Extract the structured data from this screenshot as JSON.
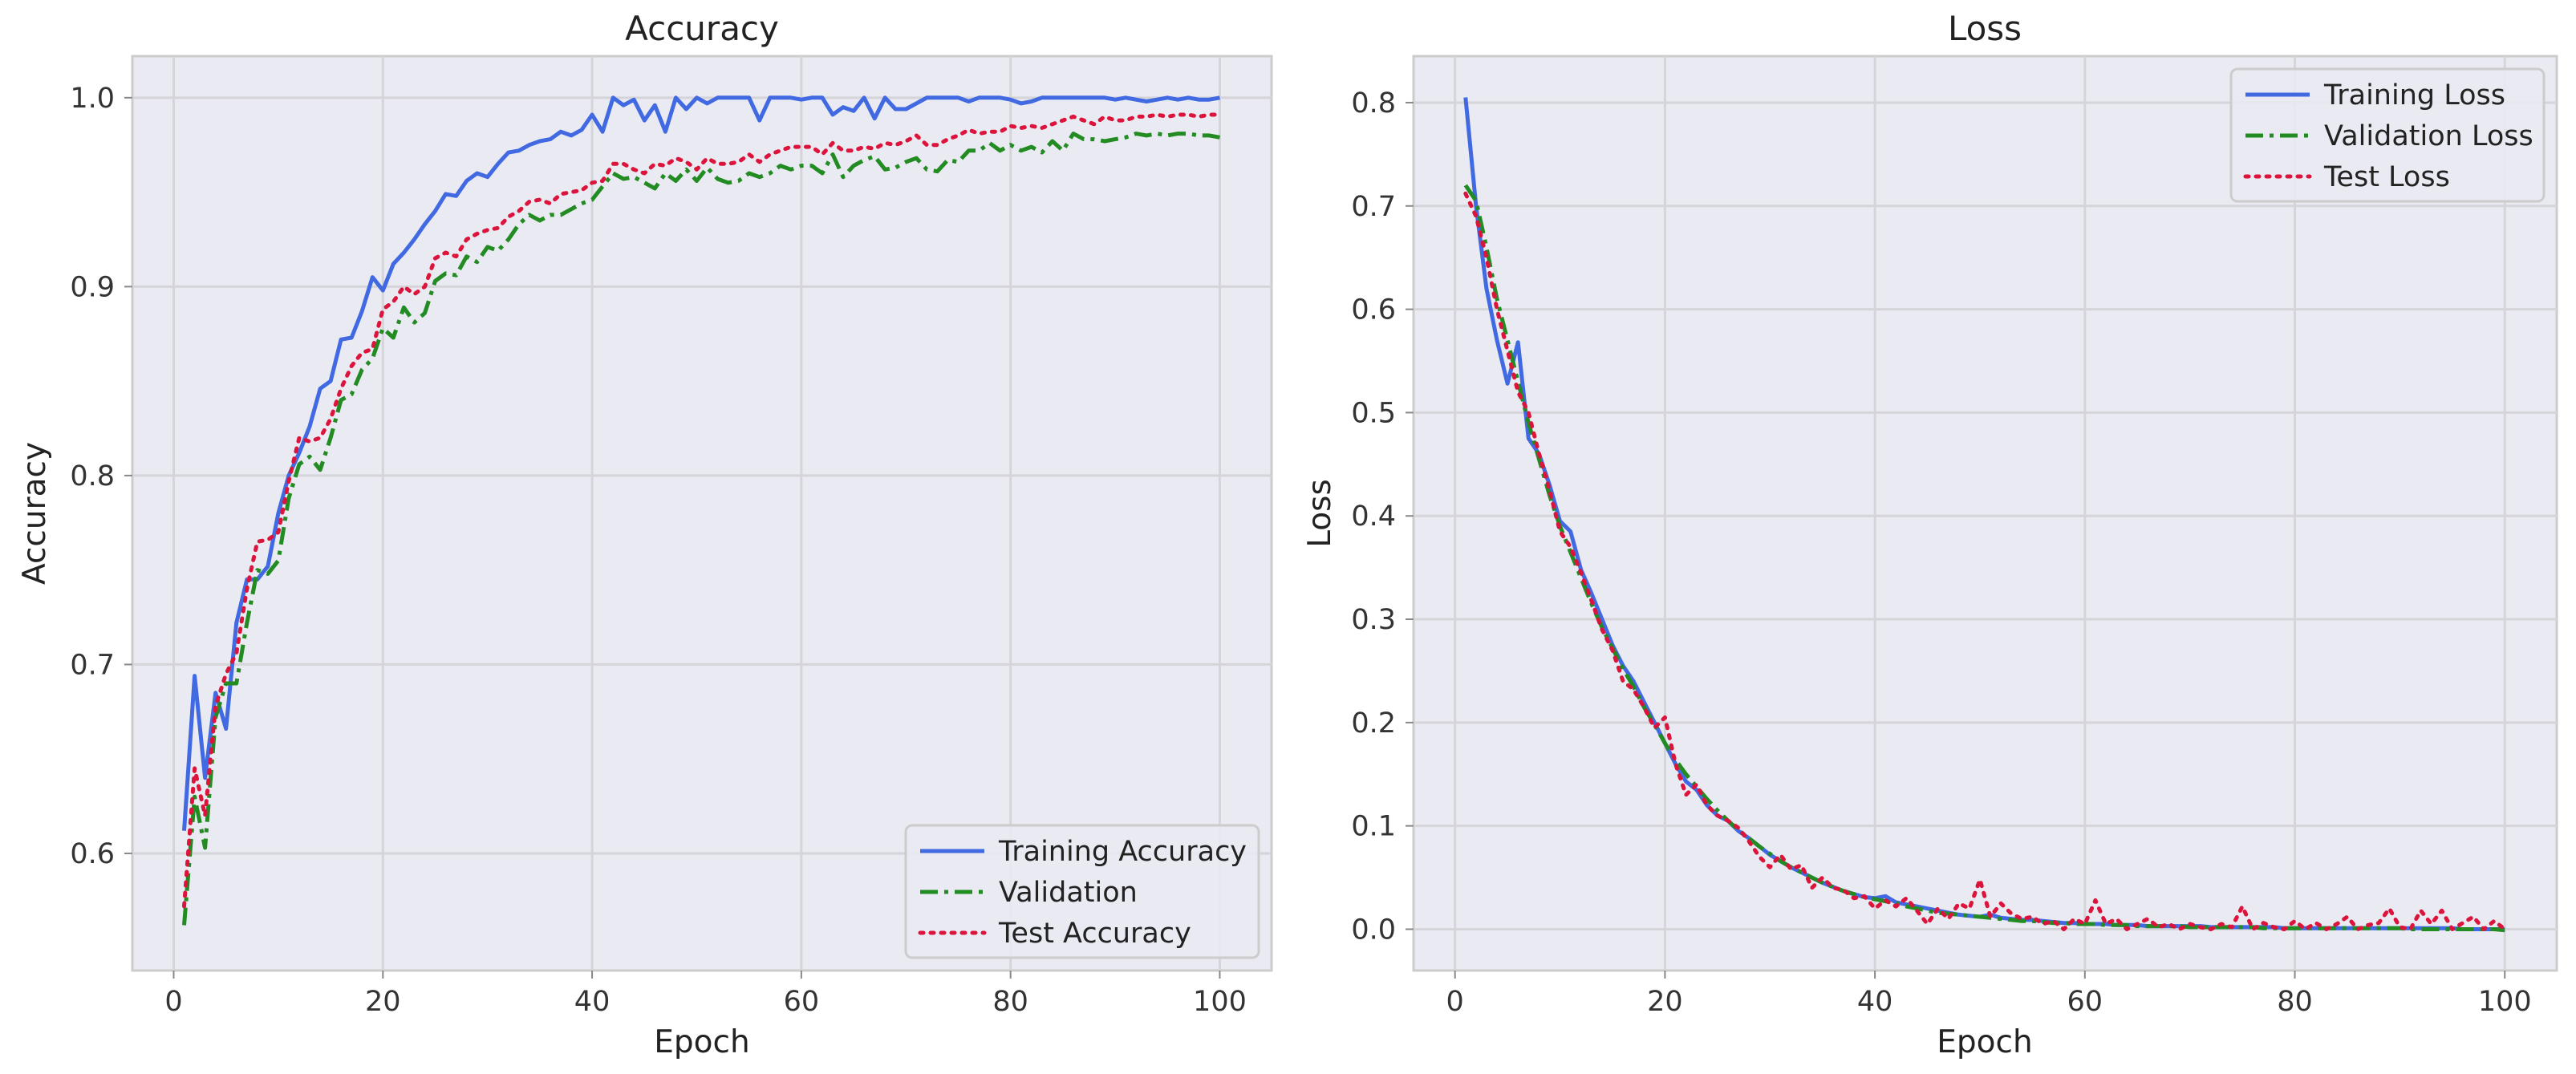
{
  "chart_data": [
    {
      "type": "line",
      "title": "Accuracy",
      "xlabel": "Epoch",
      "ylabel": "Accuracy",
      "xlim": [
        -3.95,
        104.95
      ],
      "ylim": [
        0.538,
        1.022
      ],
      "xticks": [
        0,
        20,
        40,
        60,
        80,
        100
      ],
      "yticks": [
        0.6,
        0.7,
        0.8,
        0.9,
        1.0
      ],
      "grid": true,
      "legend_position": "lower-right",
      "x": [
        1,
        2,
        3,
        4,
        5,
        6,
        7,
        8,
        9,
        10,
        11,
        12,
        13,
        14,
        15,
        16,
        17,
        18,
        19,
        20,
        21,
        22,
        23,
        24,
        25,
        26,
        27,
        28,
        29,
        30,
        31,
        32,
        33,
        34,
        35,
        36,
        37,
        38,
        39,
        40,
        41,
        42,
        43,
        44,
        45,
        46,
        47,
        48,
        49,
        50,
        51,
        52,
        53,
        54,
        55,
        56,
        57,
        58,
        59,
        60,
        61,
        62,
        63,
        64,
        65,
        66,
        67,
        68,
        69,
        70,
        71,
        72,
        73,
        74,
        75,
        76,
        77,
        78,
        79,
        80,
        81,
        82,
        83,
        84,
        85,
        86,
        87,
        88,
        89,
        90,
        91,
        92,
        93,
        94,
        95,
        96,
        97,
        98,
        99,
        100
      ],
      "series": [
        {
          "name": "Training Accuracy",
          "color": "#4169e1",
          "dash": "solid",
          "values": [
            0.612,
            0.694,
            0.64,
            0.685,
            0.666,
            0.722,
            0.745,
            0.745,
            0.752,
            0.78,
            0.8,
            0.812,
            0.826,
            0.846,
            0.85,
            0.872,
            0.873,
            0.887,
            0.905,
            0.898,
            0.912,
            0.918,
            0.925,
            0.933,
            0.94,
            0.949,
            0.948,
            0.956,
            0.96,
            0.958,
            0.965,
            0.971,
            0.972,
            0.975,
            0.977,
            0.978,
            0.982,
            0.98,
            0.983,
            0.991,
            0.982,
            1.0,
            0.996,
            0.999,
            0.988,
            0.996,
            0.982,
            1.0,
            0.994,
            1.0,
            0.997,
            1.0,
            1.0,
            1.0,
            1.0,
            0.988,
            1.0,
            1.0,
            1.0,
            0.999,
            1.0,
            1.0,
            0.991,
            0.995,
            0.993,
            1.0,
            0.989,
            1.0,
            0.994,
            0.994,
            0.997,
            1.0,
            1.0,
            1.0,
            1.0,
            0.998,
            1.0,
            1.0,
            1.0,
            0.999,
            0.997,
            0.998,
            1.0,
            1.0,
            1.0,
            1.0,
            1.0,
            1.0,
            1.0,
            0.999,
            1.0,
            0.999,
            0.998,
            0.999,
            1.0,
            0.999,
            1.0,
            0.999,
            0.999,
            1.0
          ]
        },
        {
          "name": "Validation",
          "color": "#228b22",
          "dash": "dashdot",
          "values": [
            0.562,
            0.63,
            0.603,
            0.672,
            0.69,
            0.69,
            0.722,
            0.75,
            0.748,
            0.755,
            0.788,
            0.806,
            0.81,
            0.803,
            0.82,
            0.84,
            0.843,
            0.856,
            0.862,
            0.878,
            0.873,
            0.889,
            0.881,
            0.886,
            0.903,
            0.907,
            0.906,
            0.916,
            0.913,
            0.921,
            0.919,
            0.925,
            0.933,
            0.938,
            0.935,
            0.938,
            0.938,
            0.941,
            0.944,
            0.946,
            0.953,
            0.96,
            0.957,
            0.958,
            0.955,
            0.952,
            0.96,
            0.956,
            0.962,
            0.956,
            0.963,
            0.957,
            0.955,
            0.956,
            0.96,
            0.958,
            0.96,
            0.964,
            0.962,
            0.964,
            0.964,
            0.96,
            0.97,
            0.958,
            0.964,
            0.967,
            0.969,
            0.962,
            0.963,
            0.966,
            0.968,
            0.962,
            0.961,
            0.967,
            0.966,
            0.972,
            0.972,
            0.976,
            0.972,
            0.975,
            0.972,
            0.974,
            0.971,
            0.977,
            0.972,
            0.981,
            0.978,
            0.978,
            0.977,
            0.978,
            0.979,
            0.981,
            0.98,
            0.981,
            0.98,
            0.981,
            0.981,
            0.98,
            0.98,
            0.979
          ]
        },
        {
          "name": "Test Accuracy",
          "color": "#dc143c",
          "dash": "dotted",
          "values": [
            0.572,
            0.645,
            0.62,
            0.678,
            0.695,
            0.706,
            0.74,
            0.765,
            0.766,
            0.77,
            0.797,
            0.82,
            0.818,
            0.82,
            0.83,
            0.846,
            0.858,
            0.865,
            0.867,
            0.888,
            0.892,
            0.9,
            0.896,
            0.9,
            0.915,
            0.918,
            0.916,
            0.925,
            0.928,
            0.93,
            0.931,
            0.937,
            0.94,
            0.945,
            0.946,
            0.944,
            0.949,
            0.95,
            0.951,
            0.955,
            0.956,
            0.965,
            0.965,
            0.962,
            0.96,
            0.965,
            0.964,
            0.968,
            0.966,
            0.962,
            0.968,
            0.965,
            0.965,
            0.966,
            0.97,
            0.966,
            0.97,
            0.972,
            0.974,
            0.974,
            0.974,
            0.97,
            0.976,
            0.972,
            0.972,
            0.974,
            0.973,
            0.976,
            0.975,
            0.977,
            0.98,
            0.975,
            0.975,
            0.978,
            0.98,
            0.983,
            0.981,
            0.982,
            0.982,
            0.985,
            0.984,
            0.985,
            0.984,
            0.986,
            0.988,
            0.99,
            0.988,
            0.986,
            0.99,
            0.988,
            0.988,
            0.99,
            0.99,
            0.991,
            0.99,
            0.991,
            0.991,
            0.99,
            0.991,
            0.991
          ]
        }
      ]
    },
    {
      "type": "line",
      "title": "Loss",
      "xlabel": "Epoch",
      "ylabel": "Loss",
      "xlim": [
        -3.95,
        104.95
      ],
      "ylim": [
        -0.04,
        0.845
      ],
      "xticks": [
        0,
        20,
        40,
        60,
        80,
        100
      ],
      "yticks": [
        0.0,
        0.1,
        0.2,
        0.3,
        0.4,
        0.5,
        0.6,
        0.7,
        0.8
      ],
      "grid": true,
      "legend_position": "upper-right",
      "x": [
        1,
        2,
        3,
        4,
        5,
        6,
        7,
        8,
        9,
        10,
        11,
        12,
        13,
        14,
        15,
        16,
        17,
        18,
        19,
        20,
        21,
        22,
        23,
        24,
        25,
        26,
        27,
        28,
        29,
        30,
        31,
        32,
        33,
        34,
        35,
        36,
        37,
        38,
        39,
        40,
        41,
        42,
        43,
        44,
        45,
        46,
        47,
        48,
        49,
        50,
        51,
        52,
        53,
        54,
        55,
        56,
        57,
        58,
        59,
        60,
        61,
        62,
        63,
        64,
        65,
        66,
        67,
        68,
        69,
        70,
        71,
        72,
        73,
        74,
        75,
        76,
        77,
        78,
        79,
        80,
        81,
        82,
        83,
        84,
        85,
        86,
        87,
        88,
        89,
        90,
        91,
        92,
        93,
        94,
        95,
        96,
        97,
        98,
        99,
        100
      ],
      "series": [
        {
          "name": "Training Loss",
          "color": "#4169e1",
          "dash": "solid",
          "values": [
            0.805,
            0.7,
            0.62,
            0.57,
            0.528,
            0.568,
            0.475,
            0.46,
            0.43,
            0.395,
            0.385,
            0.348,
            0.325,
            0.3,
            0.275,
            0.255,
            0.24,
            0.22,
            0.2,
            0.18,
            0.16,
            0.143,
            0.135,
            0.12,
            0.11,
            0.105,
            0.095,
            0.088,
            0.08,
            0.072,
            0.066,
            0.06,
            0.055,
            0.05,
            0.045,
            0.041,
            0.037,
            0.034,
            0.031,
            0.03,
            0.032,
            0.026,
            0.024,
            0.022,
            0.02,
            0.018,
            0.016,
            0.014,
            0.013,
            0.012,
            0.014,
            0.011,
            0.01,
            0.009,
            0.009,
            0.008,
            0.007,
            0.006,
            0.006,
            0.005,
            0.005,
            0.005,
            0.004,
            0.004,
            0.004,
            0.003,
            0.003,
            0.003,
            0.003,
            0.003,
            0.003,
            0.002,
            0.002,
            0.002,
            0.002,
            0.002,
            0.002,
            0.002,
            0.001,
            0.001,
            0.001,
            0.001,
            0.001,
            0.001,
            0.001,
            0.001,
            0.001,
            0.001,
            0.001,
            0.001,
            0.001,
            0.001,
            0.001,
            0.001,
            0.001,
            0.0,
            0.0,
            0.0,
            0.0,
            0.0
          ]
        },
        {
          "name": "Validation Loss",
          "color": "#228b22",
          "dash": "dashdot",
          "values": [
            0.72,
            0.705,
            0.66,
            0.61,
            0.57,
            0.53,
            0.49,
            0.455,
            0.42,
            0.39,
            0.365,
            0.34,
            0.315,
            0.292,
            0.272,
            0.252,
            0.235,
            0.215,
            0.198,
            0.18,
            0.164,
            0.15,
            0.138,
            0.126,
            0.115,
            0.105,
            0.096,
            0.088,
            0.08,
            0.073,
            0.066,
            0.06,
            0.055,
            0.05,
            0.045,
            0.041,
            0.037,
            0.034,
            0.031,
            0.029,
            0.027,
            0.025,
            0.022,
            0.02,
            0.018,
            0.016,
            0.015,
            0.014,
            0.013,
            0.012,
            0.011,
            0.01,
            0.009,
            0.008,
            0.008,
            0.007,
            0.006,
            0.006,
            0.005,
            0.005,
            0.005,
            0.004,
            0.004,
            0.004,
            0.003,
            0.003,
            0.003,
            0.003,
            0.003,
            0.002,
            0.002,
            0.002,
            0.002,
            0.002,
            0.002,
            0.002,
            0.001,
            0.001,
            0.001,
            0.001,
            0.001,
            0.001,
            0.001,
            0.001,
            0.001,
            0.001,
            0.001,
            0.001,
            0.001,
            0.001,
            0.0,
            0.0,
            0.0,
            0.0,
            0.0,
            0.0,
            0.0,
            0.0,
            0.0,
            -0.001
          ]
        },
        {
          "name": "Test Loss",
          "color": "#dc143c",
          "dash": "dotted",
          "values": [
            0.712,
            0.69,
            0.65,
            0.6,
            0.56,
            0.52,
            0.5,
            0.46,
            0.425,
            0.385,
            0.37,
            0.345,
            0.318,
            0.29,
            0.27,
            0.24,
            0.232,
            0.215,
            0.195,
            0.205,
            0.16,
            0.13,
            0.14,
            0.12,
            0.11,
            0.105,
            0.098,
            0.085,
            0.07,
            0.06,
            0.072,
            0.058,
            0.062,
            0.04,
            0.05,
            0.04,
            0.038,
            0.03,
            0.032,
            0.02,
            0.028,
            0.022,
            0.03,
            0.018,
            0.005,
            0.02,
            0.01,
            0.025,
            0.02,
            0.048,
            0.012,
            0.025,
            0.015,
            0.01,
            0.012,
            0.005,
            0.008,
            0.0,
            0.01,
            0.005,
            0.028,
            0.005,
            0.01,
            0.0,
            0.005,
            0.01,
            0.002,
            0.005,
            0.0,
            0.005,
            0.002,
            0.0,
            0.005,
            0.002,
            0.022,
            0.0,
            0.006,
            0.002,
            0.0,
            0.008,
            0.0,
            0.006,
            0.0,
            0.005,
            0.012,
            0.0,
            0.004,
            0.006,
            0.02,
            0.002,
            0.0,
            0.018,
            0.005,
            0.018,
            0.0,
            0.006,
            0.012,
            0.0,
            0.008,
            0.0
          ]
        }
      ]
    }
  ]
}
